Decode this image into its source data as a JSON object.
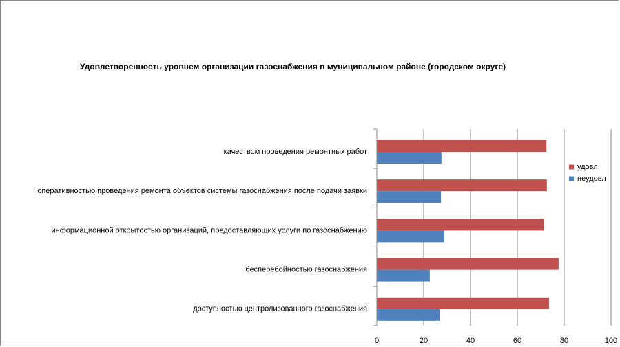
{
  "chart_data": {
    "type": "bar",
    "orientation": "horizontal",
    "title": "Удовлетворенность уровнем организации газоснабжения в муниципальном районе (городском округе)",
    "categories": [
      "доступностью центролизованного газоснабжения",
      "бесперебойностью газоснабжения",
      "информационной открытостью организаций, предоставляющих услуги по газоснабжению",
      "оперативностью проведения ремонта объектов системы газоснабжения после подачи заявки",
      "качеством проведения ремонтных работ"
    ],
    "series": [
      {
        "name": "удовл",
        "color": "#c0504d",
        "values": [
          73.5,
          77.6,
          71.2,
          72.6,
          72.4
        ]
      },
      {
        "name": "неудовл",
        "color": "#4f81bd",
        "values": [
          26.8,
          22.6,
          28.8,
          27.4,
          27.6
        ]
      }
    ],
    "xlim": [
      0,
      100
    ],
    "xticks": [
      0,
      20,
      40,
      60,
      80,
      100
    ],
    "grid": true,
    "legend": "right"
  }
}
